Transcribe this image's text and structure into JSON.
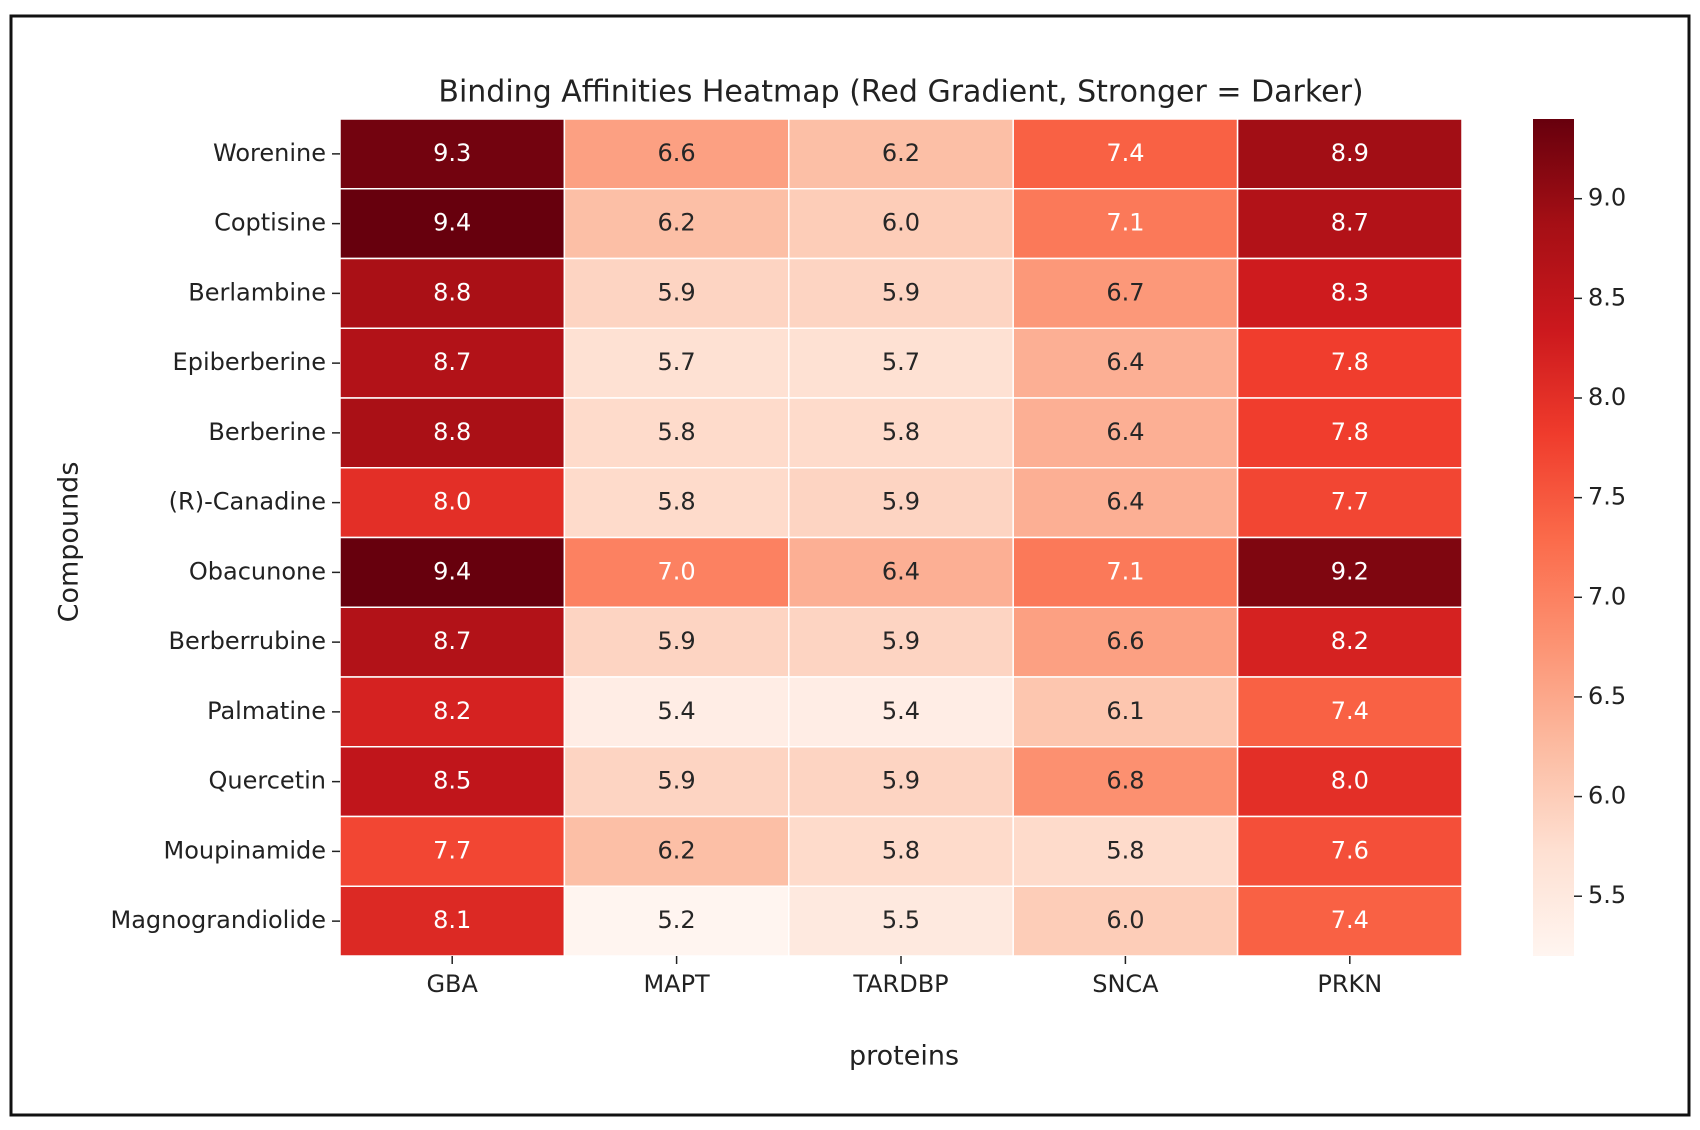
{
  "chart_data": {
    "type": "heatmap",
    "title": "Binding Affinities Heatmap (Red Gradient, Stronger = Darker)",
    "xlabel": "proteins",
    "ylabel": "Compounds",
    "x_categories": [
      "GBA",
      "MAPT",
      "TARDBP",
      "SNCA",
      "PRKN"
    ],
    "y_categories": [
      "Worenine",
      "Coptisine",
      "Berlambine",
      "Epiberberine",
      "Berberine",
      "(R)-Canadine",
      "Obacunone",
      "Berberrubine",
      "Palmatine",
      "Quercetin",
      "Moupinamide",
      "Magnograndiolide"
    ],
    "values": [
      [
        9.3,
        6.6,
        6.2,
        7.4,
        8.9
      ],
      [
        9.4,
        6.2,
        6.0,
        7.1,
        8.7
      ],
      [
        8.8,
        5.9,
        5.9,
        6.7,
        8.3
      ],
      [
        8.7,
        5.7,
        5.7,
        6.4,
        7.8
      ],
      [
        8.8,
        5.8,
        5.8,
        6.4,
        7.8
      ],
      [
        8.0,
        5.8,
        5.9,
        6.4,
        7.7
      ],
      [
        9.4,
        7.0,
        6.4,
        7.1,
        9.2
      ],
      [
        8.7,
        5.9,
        5.9,
        6.6,
        8.2
      ],
      [
        8.2,
        5.4,
        5.4,
        6.1,
        7.4
      ],
      [
        8.5,
        5.9,
        5.9,
        6.8,
        8.0
      ],
      [
        7.7,
        6.2,
        5.8,
        5.8,
        7.6
      ],
      [
        8.1,
        5.2,
        5.5,
        6.0,
        7.4
      ]
    ],
    "value_labels": [
      [
        "9.3",
        "6.6",
        "6.2",
        "7.4",
        "8.9"
      ],
      [
        "9.4",
        "6.2",
        "6.0",
        "7.1",
        "8.7"
      ],
      [
        "8.8",
        "5.9",
        "5.9",
        "6.7",
        "8.3"
      ],
      [
        "8.7",
        "5.7",
        "5.7",
        "6.4",
        "7.8"
      ],
      [
        "8.8",
        "5.8",
        "5.8",
        "6.4",
        "7.8"
      ],
      [
        "8.0",
        "5.8",
        "5.9",
        "6.4",
        "7.7"
      ],
      [
        "9.4",
        "7.0",
        "6.4",
        "7.1",
        "9.2"
      ],
      [
        "8.7",
        "5.9",
        "5.9",
        "6.6",
        "8.2"
      ],
      [
        "8.2",
        "5.4",
        "5.4",
        "6.1",
        "7.4"
      ],
      [
        "8.5",
        "5.9",
        "5.9",
        "6.8",
        "8.0"
      ],
      [
        "7.7",
        "6.2",
        "5.8",
        "5.8",
        "7.6"
      ],
      [
        "8.1",
        "5.2",
        "5.5",
        "6.0",
        "7.4"
      ]
    ],
    "clim": [
      5.2,
      9.4
    ],
    "cticks": [
      5.5,
      {
        "value": 6.0,
        "label": "6.0"
      },
      6.5,
      {
        "value": 7.0,
        "label": "7.0"
      },
      7.5,
      {
        "value": 8.0,
        "label": "8.0"
      },
      8.5,
      {
        "value": 9.0,
        "label": "9.0"
      }
    ],
    "colorscale": [
      "#fff5f0",
      "#fee0d2",
      "#fcbba1",
      "#fc9272",
      "#fb6a4a",
      "#ef3b2c",
      "#cb181d",
      "#a50f15",
      "#67000d"
    ]
  }
}
